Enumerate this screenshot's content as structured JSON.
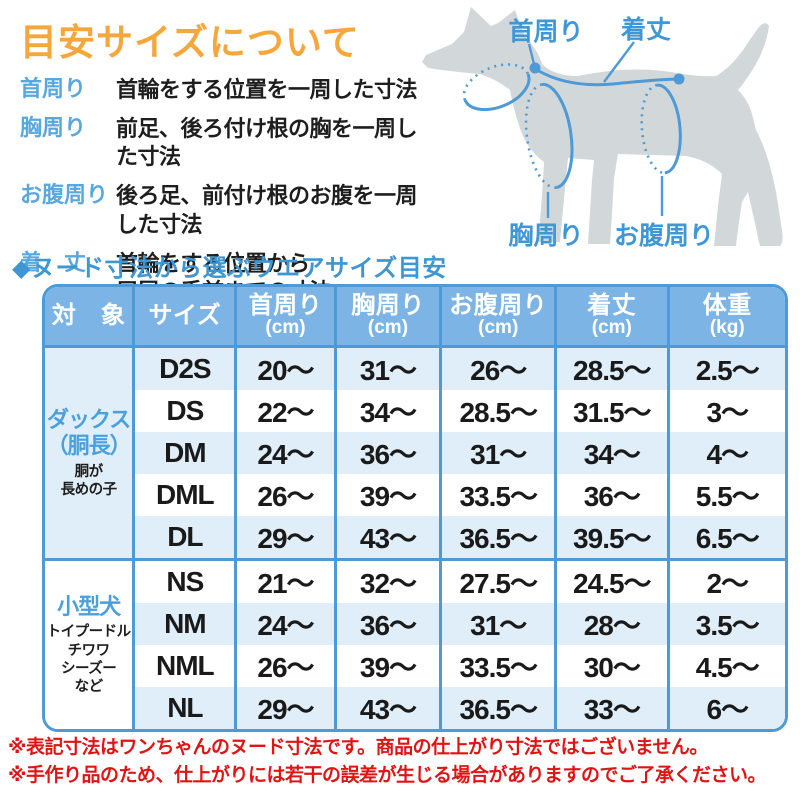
{
  "title": "目安サイズについて",
  "legend": {
    "items": [
      {
        "term": "首周り",
        "desc": "首輪をする位置を一周した寸法"
      },
      {
        "term": "胸周り",
        "desc": "前足、後ろ付け根の胸を一周した寸法"
      },
      {
        "term": "お腹周り",
        "desc": "後ろ足、前付け根のお腹を一周した寸法"
      },
      {
        "term": "着　丈",
        "desc": "首輪をする位置から\n尻尾の手前までの寸法"
      }
    ]
  },
  "diagram": {
    "labels": {
      "neck": "首周り",
      "length": "着丈",
      "chest": "胸周り",
      "belly": "お腹周り"
    }
  },
  "section_heading": "◆ヌード寸法から選ぶウエアサイズ目安",
  "table": {
    "headers": [
      {
        "label": "対　象",
        "unit": ""
      },
      {
        "label": "サイズ",
        "unit": ""
      },
      {
        "label": "首周り",
        "unit": "(cm)"
      },
      {
        "label": "胸周り",
        "unit": "(cm)"
      },
      {
        "label": "お腹周り",
        "unit": "(cm)"
      },
      {
        "label": "着丈",
        "unit": "(cm)"
      },
      {
        "label": "体重",
        "unit": "(kg)"
      }
    ],
    "groups": [
      {
        "name_main": "ダックス\n（胴長）",
        "name_sub": "胴が\n長めの子",
        "rows": [
          {
            "size": "D2S",
            "neck": "20～",
            "chest": "31～",
            "belly": "26～",
            "length": "28.5～",
            "weight": "2.5～"
          },
          {
            "size": "DS",
            "neck": "22～",
            "chest": "34～",
            "belly": "28.5～",
            "length": "31.5～",
            "weight": "3～"
          },
          {
            "size": "DM",
            "neck": "24～",
            "chest": "36～",
            "belly": "31～",
            "length": "34～",
            "weight": "4～"
          },
          {
            "size": "DML",
            "neck": "26～",
            "chest": "39～",
            "belly": "33.5～",
            "length": "36～",
            "weight": "5.5～"
          },
          {
            "size": "DL",
            "neck": "29～",
            "chest": "43～",
            "belly": "36.5～",
            "length": "39.5～",
            "weight": "6.5～"
          }
        ]
      },
      {
        "name_main": "小型犬",
        "name_sub": "トイプードル\nチワワ\nシーズー\nなど",
        "rows": [
          {
            "size": "NS",
            "neck": "21～",
            "chest": "32～",
            "belly": "27.5～",
            "length": "24.5～",
            "weight": "2～"
          },
          {
            "size": "NM",
            "neck": "24～",
            "chest": "36～",
            "belly": "31～",
            "length": "28～",
            "weight": "3.5～"
          },
          {
            "size": "NML",
            "neck": "26～",
            "chest": "39～",
            "belly": "33.5～",
            "length": "30～",
            "weight": "4.5～"
          },
          {
            "size": "NL",
            "neck": "29～",
            "chest": "43～",
            "belly": "36.5～",
            "length": "33～",
            "weight": "6～"
          }
        ]
      }
    ]
  },
  "notes": [
    "※表記寸法はワンちゃんのヌード寸法です。商品の仕上がり寸法ではございません。",
    "※手作り品のため、仕上がりには若干の誤差が生じる場合がありますのでご了承ください。"
  ],
  "colors": {
    "title_orange": "#f6a73c",
    "heading_blue": "#3e96d3",
    "legend_term_blue": "#58a7dd",
    "table_border_blue": "#4e9ad6",
    "table_header_blue": "#7cb5e5",
    "row_stripe_blue": "#e0eef9",
    "subject_blue": "#4aa0dc",
    "note_red": "#e01414",
    "dog_gray": "#d2d7da",
    "text_black": "#1a1a1a"
  }
}
